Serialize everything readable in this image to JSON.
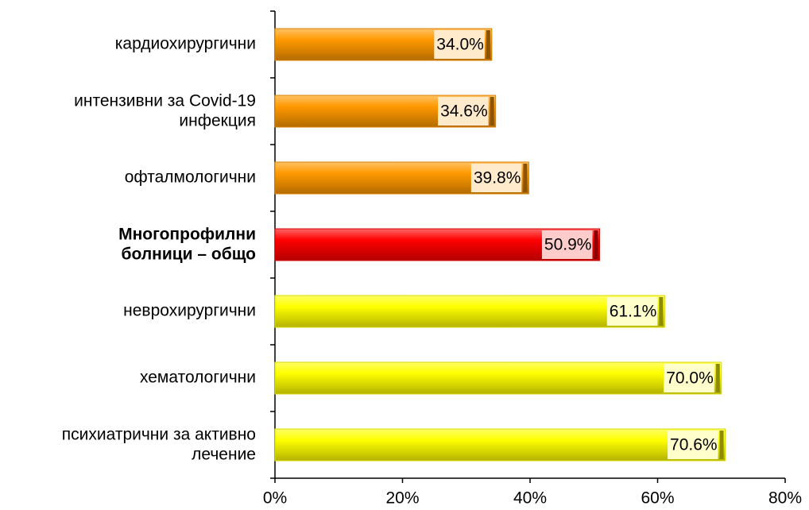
{
  "chart_data": {
    "type": "bar",
    "orientation": "horizontal",
    "categories": [
      "кардиохирургични",
      "интензивни за Covid-19\nинфекция",
      "офталмологични",
      "Многопрофилни\nболници – общо",
      "неврохирургични",
      "хематологични",
      "психиатрични за активно\nлечение"
    ],
    "values": [
      34.0,
      34.6,
      39.8,
      50.9,
      61.1,
      70.0,
      70.6
    ],
    "value_labels": [
      "34.0%",
      "34.6%",
      "39.8%",
      "50.9%",
      "61.1%",
      "70.0%",
      "70.6%"
    ],
    "colors": [
      "#ff9900",
      "#ff9900",
      "#ff9900",
      "#ff0000",
      "#ffff00",
      "#ffff00",
      "#ffff00"
    ],
    "emphasis": [
      false,
      false,
      false,
      true,
      false,
      false,
      false
    ],
    "xlim": [
      0,
      80
    ],
    "xticks": [
      {
        "value": 0,
        "label": "0%"
      },
      {
        "value": 20,
        "label": "20%"
      },
      {
        "value": 40,
        "label": "40%"
      },
      {
        "value": 60,
        "label": "60%"
      },
      {
        "value": 80,
        "label": "80%"
      }
    ],
    "grid": false
  }
}
